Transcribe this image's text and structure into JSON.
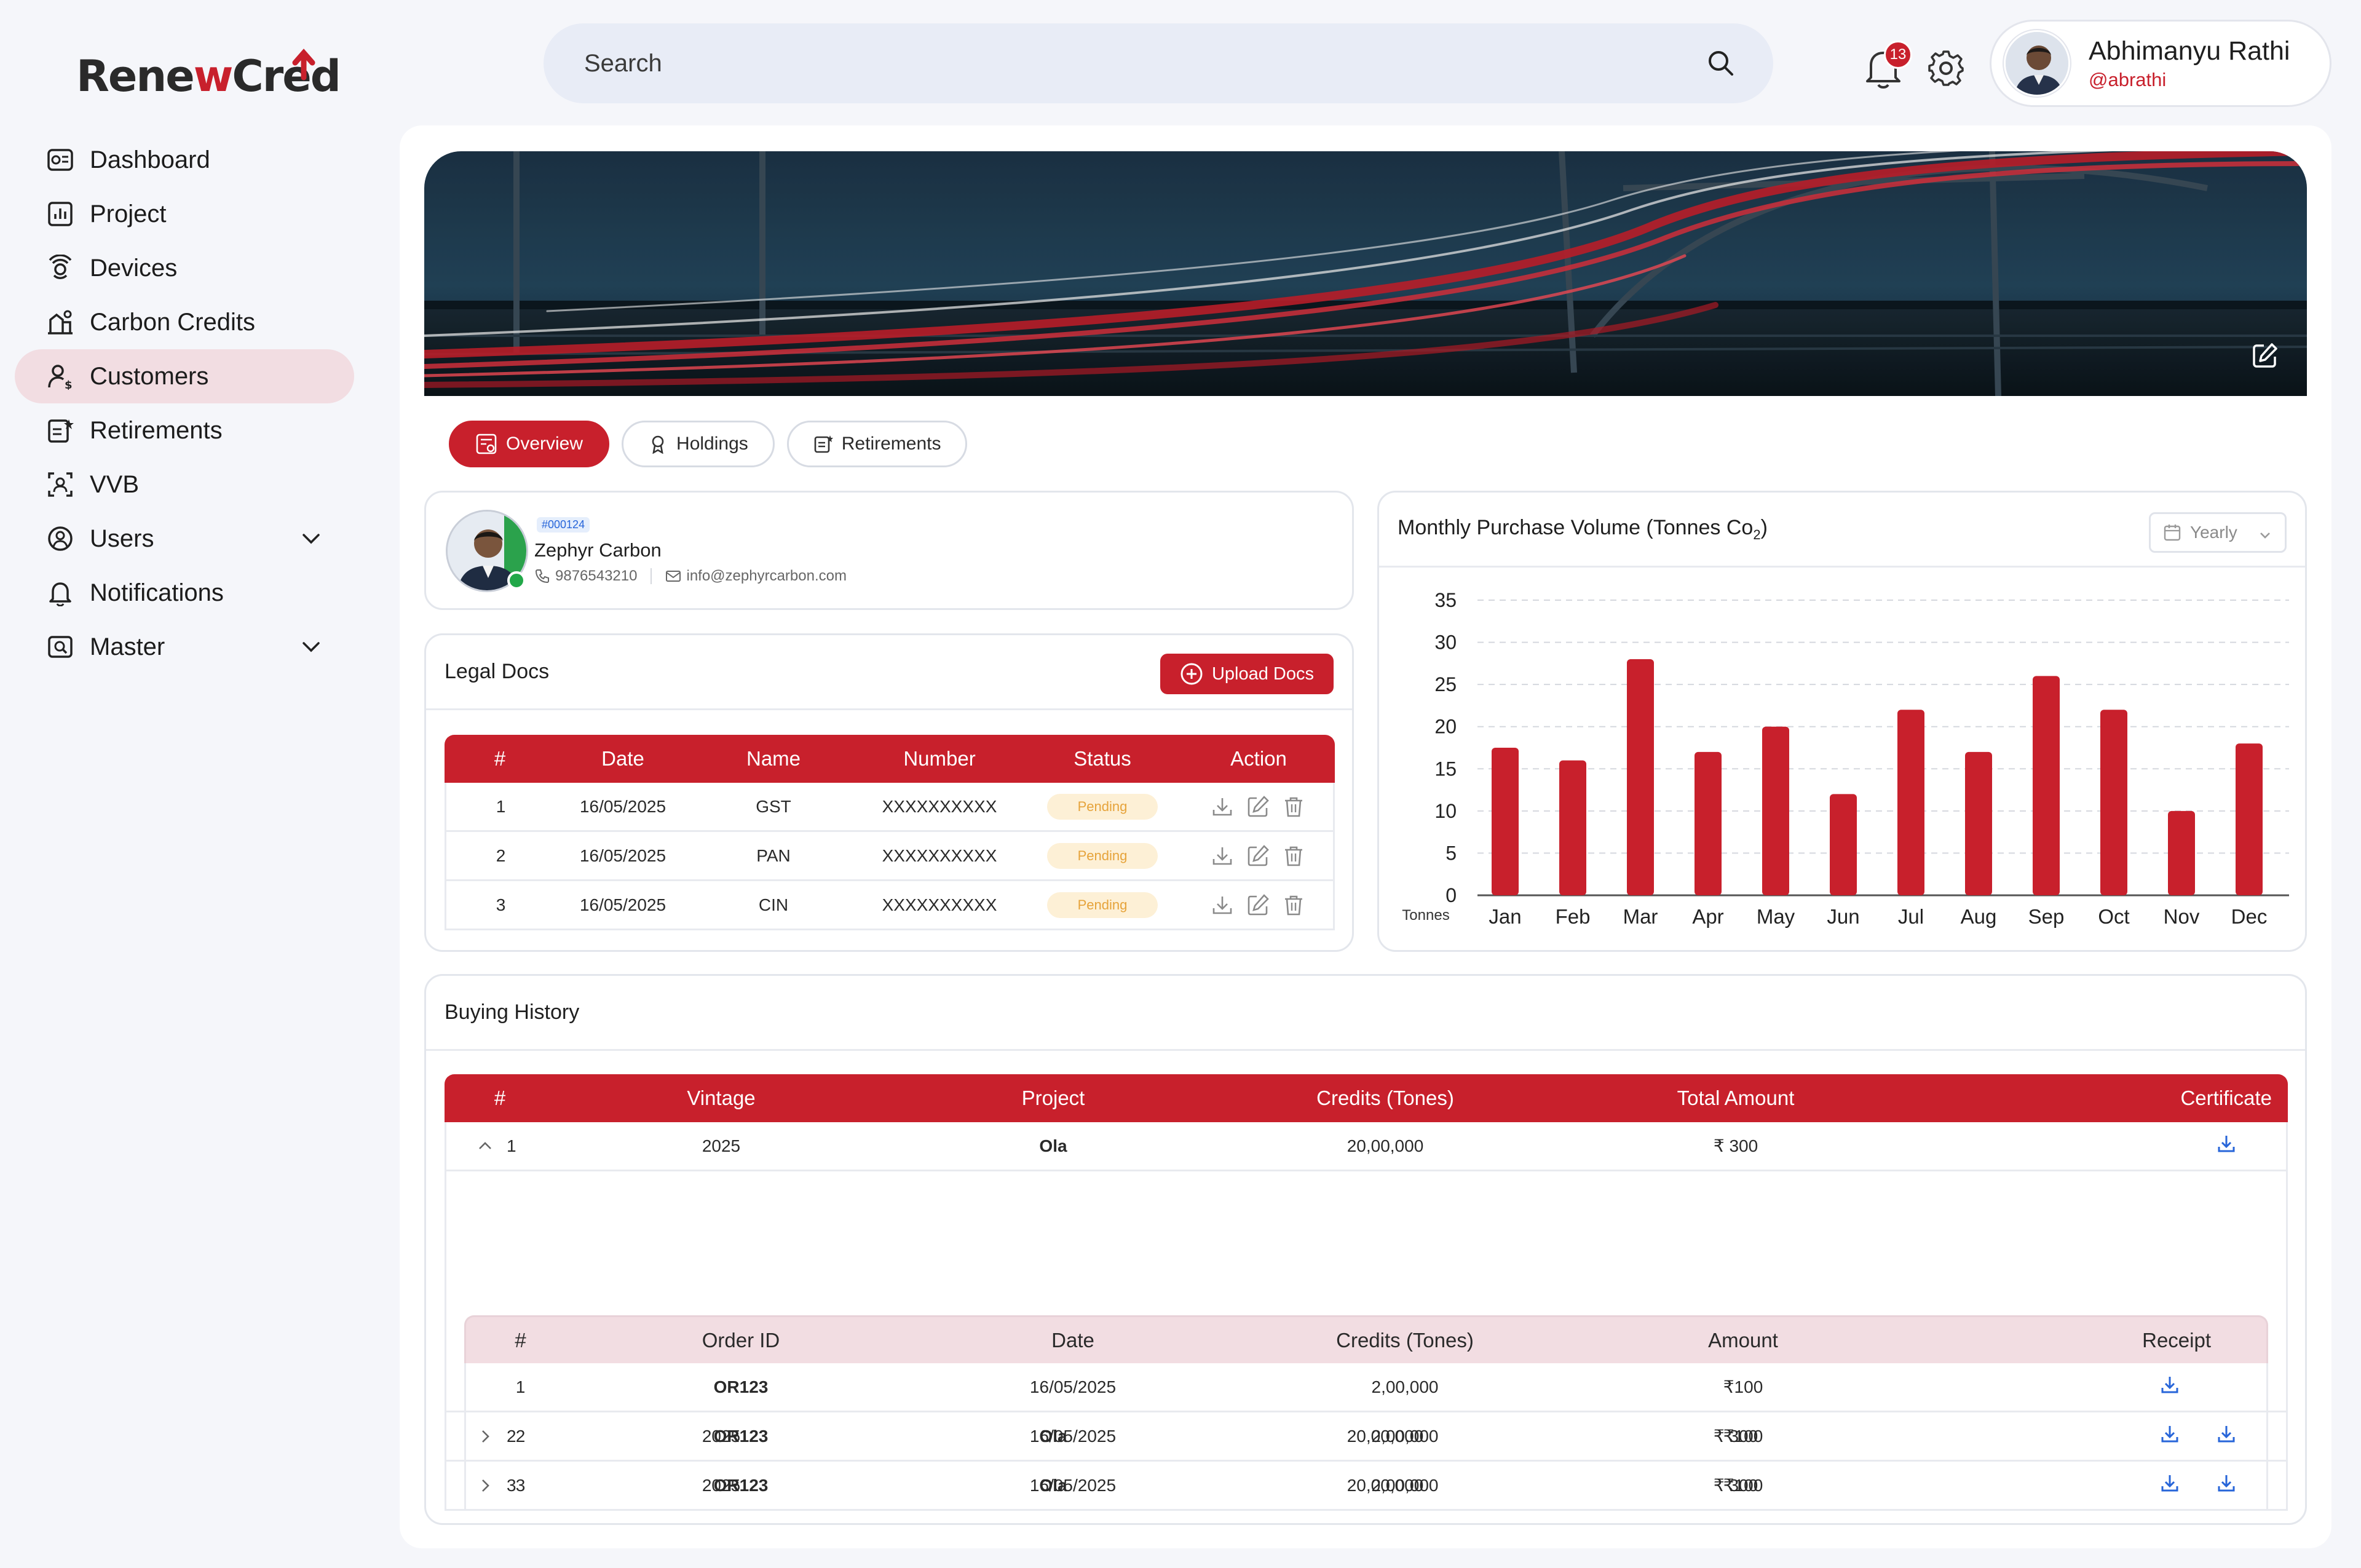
{
  "brand": {
    "logo_text_a": "Rene",
    "logo_text_w": "w",
    "logo_text_b": "Cred"
  },
  "colors": {
    "primary": "#c8202c",
    "active_nav_bg": "#f2dde2",
    "pending_bg": "#fdf0d6",
    "pending_text": "#e6a33a"
  },
  "sidebar": {
    "items": [
      {
        "label": "Dashboard",
        "icon": "dashboard-icon"
      },
      {
        "label": "Project",
        "icon": "bar-chart-icon"
      },
      {
        "label": "Devices",
        "icon": "device-icon"
      },
      {
        "label": "Carbon Credits",
        "icon": "carbon-credits-icon"
      },
      {
        "label": "Customers",
        "icon": "customers-icon",
        "active": true
      },
      {
        "label": "Retirements",
        "icon": "retirements-icon"
      },
      {
        "label": "VVB",
        "icon": "vvb-icon"
      },
      {
        "label": "Users",
        "icon": "users-icon",
        "expandable": true
      },
      {
        "label": "Notifications",
        "icon": "bell-icon"
      },
      {
        "label": "Master",
        "icon": "master-icon",
        "expandable": true
      }
    ]
  },
  "header": {
    "search_placeholder": "Search",
    "notification_count": "13",
    "user": {
      "name": "Abhimanyu Rathi",
      "handle": "@abrathi"
    }
  },
  "tabs": [
    {
      "label": "Overview",
      "icon": "overview-icon",
      "active": true
    },
    {
      "label": "Holdings",
      "icon": "holdings-icon"
    },
    {
      "label": "Retirements",
      "icon": "retirements-icon"
    }
  ],
  "customer": {
    "id": "#000124",
    "name": "Zephyr Carbon",
    "phone": "9876543210",
    "email": "info@zephyrcarbon.com"
  },
  "legal_docs": {
    "title": "Legal Docs",
    "upload_label": "Upload Docs",
    "columns": [
      "#",
      "Date",
      "Name",
      "Number",
      "Status",
      "Action"
    ],
    "rows": [
      {
        "n": "1",
        "date": "16/05/2025",
        "name": "GST",
        "number": "XXXXXXXXXX",
        "status": "Pending"
      },
      {
        "n": "2",
        "date": "16/05/2025",
        "name": "PAN",
        "number": "XXXXXXXXXX",
        "status": "Pending"
      },
      {
        "n": "3",
        "date": "16/05/2025",
        "name": "CIN",
        "number": "XXXXXXXXXX",
        "status": "Pending"
      }
    ]
  },
  "chart_card": {
    "period": "Yearly"
  },
  "chart_data": {
    "type": "bar",
    "title": "Monthly Purchase Volume (Tonnes Co",
    "title_sub": "2",
    "title_end": ")",
    "ylabel": "Tonnes",
    "ylim": [
      0,
      35
    ],
    "yticks": [
      0,
      5,
      10,
      15,
      20,
      25,
      30,
      35
    ],
    "categories": [
      "Jan",
      "Feb",
      "Mar",
      "Apr",
      "May",
      "Jun",
      "Jul",
      "Aug",
      "Sep",
      "Oct",
      "Nov",
      "Dec"
    ],
    "values": [
      17.5,
      16,
      28,
      17,
      20,
      12,
      22,
      17,
      26,
      22,
      10,
      18
    ],
    "color": "#c8202c",
    "grid": true
  },
  "buying_history": {
    "title": "Buying History",
    "columns": [
      "#",
      "Vintage",
      "Project",
      "Credits (Tones)",
      "Total Amount",
      "Certificate"
    ],
    "rows": [
      {
        "n": "1",
        "vintage": "2025",
        "project": "Ola",
        "credits": "20,00,000",
        "amount": "₹ 300",
        "expanded": true
      },
      {
        "n": "2",
        "vintage": "2025",
        "project": "Ola",
        "credits": "20,00,000",
        "amount": "₹ 300"
      },
      {
        "n": "3",
        "vintage": "2025",
        "project": "Ola",
        "credits": "20,00,000",
        "amount": "₹ 300"
      }
    ],
    "sub_columns": [
      "#",
      "Order ID",
      "Date",
      "Credits (Tones)",
      "Amount",
      "Receipt"
    ],
    "sub_rows": [
      {
        "n": "1",
        "order": "OR123",
        "date": "16/05/2025",
        "credits": "2,00,000",
        "amount": "₹100"
      },
      {
        "n": "2",
        "order": "OR123",
        "date": "16/05/2025",
        "credits": "2,00,000",
        "amount": "₹100"
      },
      {
        "n": "3",
        "order": "OR123",
        "date": "16/05/2025",
        "credits": "2,00,000",
        "amount": "₹100"
      }
    ]
  }
}
